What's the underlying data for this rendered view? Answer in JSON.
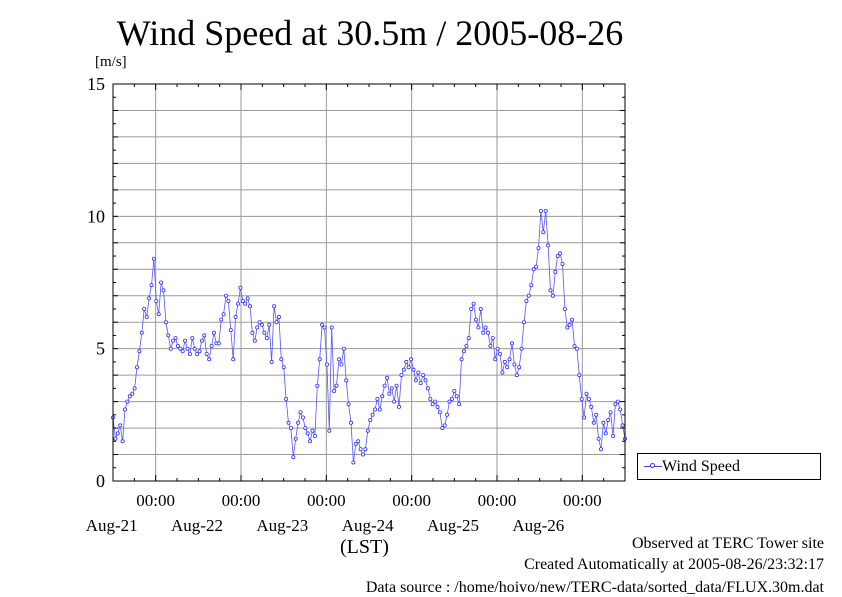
{
  "chart_data": {
    "type": "line",
    "title": "Wind Speed at 30.5m / 2005-08-26",
    "ylabel": "[m/s]",
    "xlabel": "(LST)",
    "ylim": [
      0,
      15
    ],
    "yticks": [
      0,
      5,
      10,
      15
    ],
    "xlim_days": [
      0,
      6
    ],
    "xticks": [
      {
        "day": 0.5,
        "hour_label": "00:00",
        "date_label": "Aug-21"
      },
      {
        "day": 1.5,
        "hour_label": "00:00",
        "date_label": "Aug-22"
      },
      {
        "day": 2.5,
        "hour_label": "00:00",
        "date_label": "Aug-23"
      },
      {
        "day": 3.5,
        "hour_label": "00:00",
        "date_label": "Aug-24"
      },
      {
        "day": 4.5,
        "hour_label": "00:00",
        "date_label": "Aug-25"
      },
      {
        "day": 5.5,
        "hour_label": "00:00",
        "date_label": "Aug-26"
      }
    ],
    "grid": true,
    "legend_position": "right",
    "series": [
      {
        "name": "Wind Speed",
        "color": "#3333ff",
        "values": [
          2.4,
          1.6,
          1.8,
          2.1,
          1.5,
          2.7,
          3.0,
          3.2,
          3.3,
          3.5,
          4.3,
          4.9,
          5.6,
          6.5,
          6.2,
          6.9,
          7.4,
          8.4,
          6.8,
          6.3,
          7.5,
          7.2,
          6.0,
          5.5,
          5.0,
          5.3,
          5.4,
          5.1,
          5.0,
          4.9,
          5.3,
          5.0,
          4.8,
          5.4,
          5.0,
          4.8,
          4.9,
          5.3,
          5.5,
          4.8,
          4.6,
          5.1,
          5.6,
          5.2,
          5.2,
          6.1,
          6.3,
          7.0,
          6.8,
          5.7,
          4.6,
          6.2,
          6.7,
          7.3,
          6.8,
          6.7,
          6.9,
          6.6,
          5.6,
          5.3,
          5.8,
          6.0,
          5.9,
          5.6,
          5.4,
          5.9,
          4.5,
          6.6,
          6.0,
          6.2,
          4.6,
          4.3,
          3.1,
          2.2,
          2.0,
          0.9,
          1.6,
          2.2,
          2.6,
          2.4,
          2.0,
          1.8,
          1.5,
          1.9,
          1.7,
          3.6,
          4.6,
          5.9,
          5.8,
          4.4,
          1.9,
          5.8,
          3.4,
          3.6,
          4.6,
          4.4,
          5.0,
          3.8,
          2.9,
          2.2,
          0.7,
          1.4,
          1.5,
          1.2,
          1.0,
          1.2,
          1.9,
          2.3,
          2.5,
          2.7,
          3.1,
          2.7,
          3.2,
          3.6,
          3.9,
          3.3,
          3.5,
          3.0,
          3.6,
          2.8,
          4.0,
          4.2,
          4.5,
          4.3,
          4.6,
          4.2,
          3.8,
          4.1,
          3.7,
          4.0,
          3.8,
          3.5,
          3.1,
          2.9,
          3.0,
          2.8,
          2.6,
          2.0,
          2.1,
          2.5,
          3.0,
          3.1,
          3.4,
          3.2,
          2.9,
          4.6,
          4.9,
          5.1,
          5.4,
          6.5,
          6.7,
          6.1,
          5.8,
          6.5,
          5.6,
          5.8,
          5.6,
          5.1,
          5.4,
          4.6,
          5.0,
          4.8,
          4.1,
          4.5,
          4.3,
          4.6,
          5.2,
          4.4,
          4.0,
          4.3,
          5.0,
          6.0,
          6.8,
          7.0,
          7.4,
          8.0,
          8.1,
          8.8,
          10.2,
          9.4,
          10.2,
          8.9,
          7.2,
          7.0,
          7.9,
          8.5,
          8.6,
          8.2,
          6.5,
          5.8,
          5.9,
          6.1,
          5.1,
          5.0,
          4.0,
          3.1,
          2.4,
          3.3,
          3.1,
          2.8,
          2.2,
          2.5,
          1.6,
          1.2,
          2.2,
          1.8,
          2.3,
          2.6,
          1.7,
          2.9,
          3.0,
          2.7,
          2.1,
          1.6
        ]
      }
    ]
  },
  "footer": {
    "observed": "Observed at TERC Tower site",
    "created": "Created Automatically at 2005-08-26/23:32:17",
    "source": "Data source : /home/hoivo/new/TERC-data/sorted_data/FLUX.30m.dat"
  }
}
